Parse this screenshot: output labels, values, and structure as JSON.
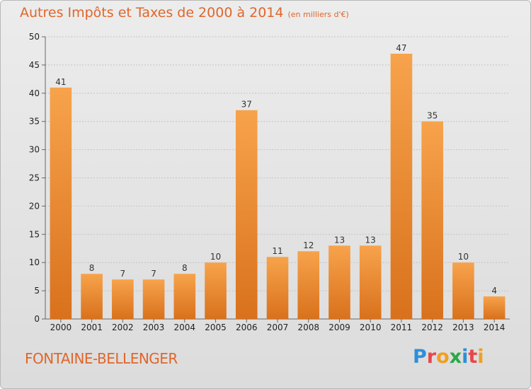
{
  "header": {
    "title": "Autres Impôts et Taxes de 2000 à 2014",
    "unit": "(en milliers d'€)"
  },
  "footer": {
    "commune": "FONTAINE-BELLENGER",
    "logo_text": "Proxiti",
    "logo_colors": [
      "#2e8fd8",
      "#e8474b",
      "#f0a020",
      "#2aa84a",
      "#2e8fd8",
      "#e8474b",
      "#f0a020"
    ]
  },
  "colors": {
    "bar_light": "#f7a34c",
    "bar_dark": "#d9711c",
    "title": "#e0662a"
  },
  "chart_data": {
    "type": "bar",
    "title": "Autres Impôts et Taxes de 2000 à 2014",
    "subtitle": "(en milliers d'€)",
    "categories": [
      "2000",
      "2001",
      "2002",
      "2003",
      "2004",
      "2005",
      "2006",
      "2007",
      "2008",
      "2009",
      "2010",
      "2011",
      "2012",
      "2013",
      "2014"
    ],
    "values": [
      41,
      8,
      7,
      7,
      8,
      10,
      37,
      11,
      12,
      13,
      13,
      47,
      35,
      10,
      4
    ],
    "ylim": [
      0,
      50
    ],
    "yticks": [
      0,
      5,
      10,
      15,
      20,
      25,
      30,
      35,
      40,
      45,
      50
    ],
    "grid": true,
    "data_labels": true
  }
}
